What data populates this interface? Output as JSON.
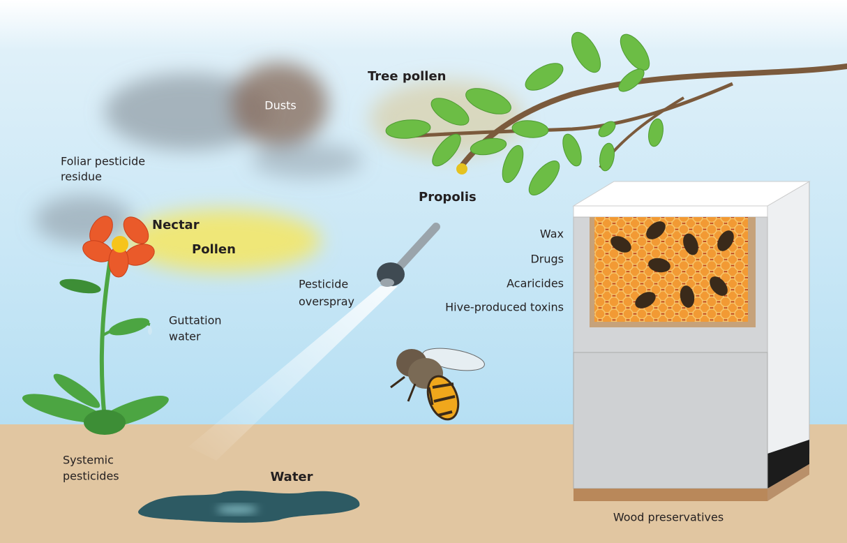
{
  "labels": {
    "dusts": "Dusts",
    "tree_pollen": "Tree pollen",
    "foliar_residue": [
      "Foliar pesticide",
      "residue"
    ],
    "propolis": "Propolis",
    "nectar": "Nectar",
    "pollen": "Pollen",
    "pesticide_overspray": [
      "Pesticide",
      "overspray"
    ],
    "guttation_water": [
      "Guttation",
      "water"
    ],
    "hive_items": [
      "Wax",
      "Drugs",
      "Acaricides",
      "Hive-produced toxins"
    ],
    "systemic_pesticides": [
      "Systemic",
      "pesticides"
    ],
    "water": "Water",
    "wood_preservatives": "Wood preservatives"
  }
}
